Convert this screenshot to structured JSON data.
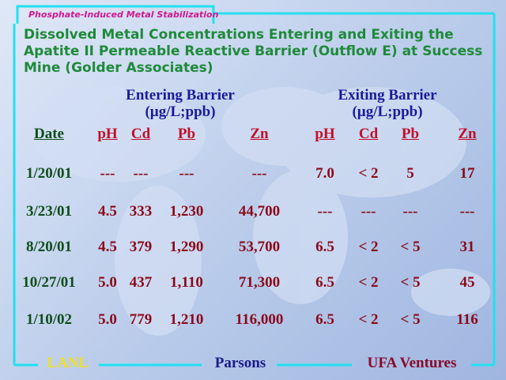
{
  "header": {
    "tag": "Phosphate-Induced Metal Stabilization",
    "title_lines": [
      "Dissolved Metal Concentrations Entering and Exiting the",
      "Apatite II Permeable Reactive Barrier (Outflow E) at Success",
      "Mine (Golder Associates)"
    ]
  },
  "groups": [
    {
      "title": "Entering Barrier",
      "units": "(µg/L;ppb)"
    },
    {
      "title": "Exiting Barrier",
      "units": "(µg/L;ppb)"
    }
  ],
  "table": {
    "columns": [
      "Date",
      "pH",
      "Cd",
      "Pb",
      "Zn",
      "pH",
      "Cd",
      "Pb",
      "Zn"
    ],
    "rows": [
      [
        "1/20/01",
        "---",
        "---",
        "---",
        "---",
        "7.0",
        "< 2",
        "5",
        "17"
      ],
      [
        "3/23/01",
        "4.5",
        "333",
        "1,230",
        "44,700",
        "---",
        "---",
        "---",
        "---"
      ],
      [
        "8/20/01",
        "4.5",
        "379",
        "1,290",
        "53,700",
        "6.5",
        "< 2",
        "< 5",
        "31"
      ],
      [
        "10/27/01",
        "5.0",
        "437",
        "1,110",
        "71,300",
        "6.5",
        "< 2",
        "< 5",
        "45"
      ],
      [
        "1/10/02",
        "5.0",
        "779",
        "1,210",
        "116,000",
        "6.5",
        "< 2",
        "< 5",
        "116"
      ]
    ]
  },
  "footer": [
    "LANL",
    "Parsons",
    "UFA Ventures"
  ]
}
